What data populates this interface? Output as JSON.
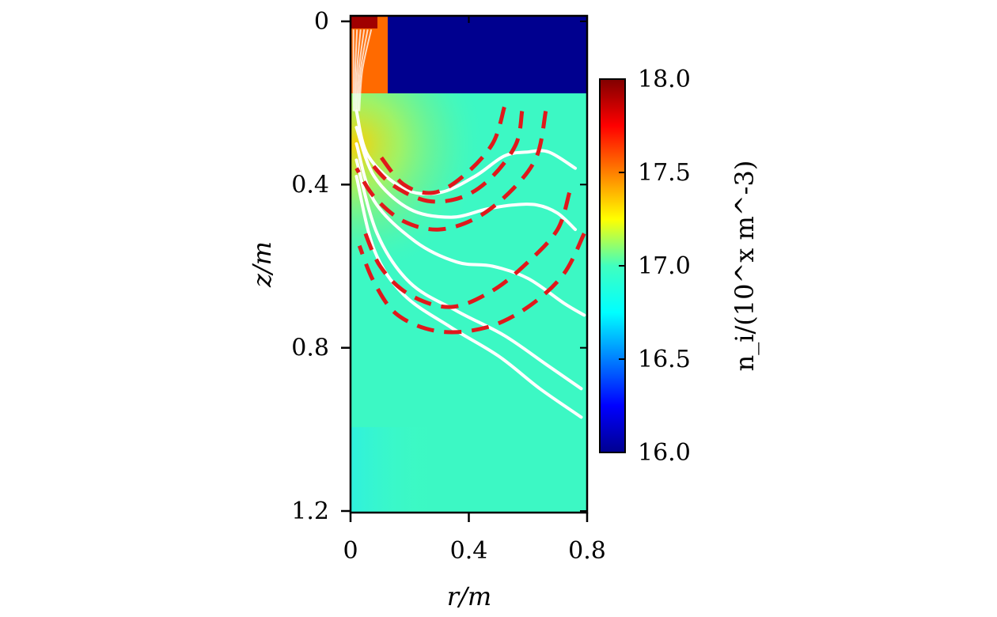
{
  "chart_data": {
    "type": "heatmap",
    "title": "",
    "xlabel": "r/m",
    "ylabel": "z/m",
    "xlim": [
      0,
      0.8
    ],
    "ylim": [
      1.2,
      0
    ],
    "x_ticks": [
      "0",
      "0.4",
      "0.8"
    ],
    "y_ticks": [
      "0",
      "0.4",
      "0.8",
      "1.2"
    ],
    "colorbar": {
      "label": "n_i/(10^x m^-3)",
      "range": [
        16.0,
        18.0
      ],
      "ticks": [
        "16.0",
        "16.5",
        "17.0",
        "17.5",
        "18.0"
      ],
      "colormap": "jet"
    },
    "field_regions": [
      {
        "name": "source",
        "r": [
          0,
          0.12
        ],
        "z": [
          0,
          0.17
        ],
        "value": 17.8
      },
      {
        "name": "coil",
        "r": [
          0.12,
          0.8
        ],
        "z": [
          0,
          0.17
        ],
        "value": 16.0
      },
      {
        "name": "background",
        "r": [
          0,
          0.8
        ],
        "z": [
          0.17,
          1.2
        ],
        "value": 16.9
      }
    ],
    "series": [
      {
        "style": "white-solid",
        "lines": [
          [
            [
              0.02,
              0.22
            ],
            [
              0.06,
              0.33
            ],
            [
              0.18,
              0.41
            ],
            [
              0.3,
              0.42
            ],
            [
              0.42,
              0.38
            ],
            [
              0.52,
              0.33
            ],
            [
              0.6,
              0.32
            ],
            [
              0.67,
              0.32
            ],
            [
              0.76,
              0.36
            ]
          ],
          [
            [
              0.02,
              0.26
            ],
            [
              0.08,
              0.38
            ],
            [
              0.2,
              0.46
            ],
            [
              0.34,
              0.48
            ],
            [
              0.46,
              0.46
            ],
            [
              0.55,
              0.45
            ],
            [
              0.63,
              0.45
            ],
            [
              0.7,
              0.47
            ],
            [
              0.76,
              0.51
            ]
          ],
          [
            [
              0.02,
              0.3
            ],
            [
              0.08,
              0.44
            ],
            [
              0.22,
              0.54
            ],
            [
              0.36,
              0.59
            ],
            [
              0.48,
              0.6
            ],
            [
              0.6,
              0.63
            ],
            [
              0.72,
              0.69
            ],
            [
              0.79,
              0.72
            ]
          ],
          [
            [
              0.02,
              0.34
            ],
            [
              0.09,
              0.52
            ],
            [
              0.2,
              0.64
            ],
            [
              0.36,
              0.71
            ],
            [
              0.52,
              0.77
            ],
            [
              0.66,
              0.84
            ],
            [
              0.78,
              0.9
            ]
          ],
          [
            [
              0.02,
              0.38
            ],
            [
              0.08,
              0.56
            ],
            [
              0.18,
              0.67
            ],
            [
              0.34,
              0.75
            ],
            [
              0.5,
              0.82
            ],
            [
              0.64,
              0.9
            ],
            [
              0.78,
              0.97
            ]
          ]
        ]
      },
      {
        "style": "red-dashed",
        "lines": [
          [
            [
              0.52,
              0.21
            ],
            [
              0.48,
              0.3
            ],
            [
              0.38,
              0.38
            ],
            [
              0.28,
              0.42
            ],
            [
              0.18,
              0.4
            ],
            [
              0.1,
              0.33
            ]
          ],
          [
            [
              0.58,
              0.22
            ],
            [
              0.56,
              0.3
            ],
            [
              0.48,
              0.38
            ],
            [
              0.38,
              0.43
            ],
            [
              0.26,
              0.44
            ],
            [
              0.14,
              0.4
            ],
            [
              0.06,
              0.34
            ]
          ],
          [
            [
              0.66,
              0.22
            ],
            [
              0.63,
              0.33
            ],
            [
              0.55,
              0.41
            ],
            [
              0.43,
              0.48
            ],
            [
              0.3,
              0.51
            ],
            [
              0.18,
              0.49
            ],
            [
              0.08,
              0.43
            ],
            [
              0.02,
              0.36
            ]
          ],
          [
            [
              0.74,
              0.42
            ],
            [
              0.7,
              0.51
            ],
            [
              0.6,
              0.59
            ],
            [
              0.48,
              0.66
            ],
            [
              0.34,
              0.7
            ],
            [
              0.2,
              0.67
            ],
            [
              0.1,
              0.6
            ],
            [
              0.04,
              0.5
            ]
          ],
          [
            [
              0.79,
              0.52
            ],
            [
              0.72,
              0.62
            ],
            [
              0.6,
              0.7
            ],
            [
              0.46,
              0.75
            ],
            [
              0.3,
              0.76
            ],
            [
              0.16,
              0.72
            ],
            [
              0.08,
              0.64
            ],
            [
              0.03,
              0.55
            ]
          ]
        ]
      }
    ]
  }
}
